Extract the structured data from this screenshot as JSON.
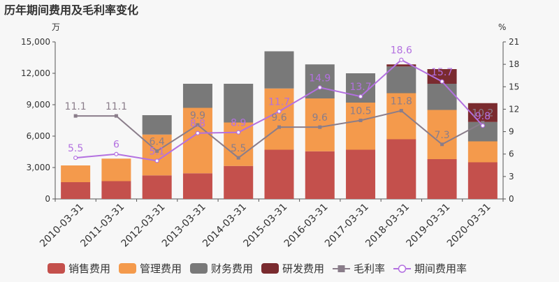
{
  "chart_data": {
    "type": "bar",
    "title": "历年期间费用及毛利率变化",
    "left_unit": "万",
    "right_unit": "%",
    "categories": [
      "2010-03-31",
      "2011-03-31",
      "2012-03-31",
      "2013-03-31",
      "2014-03-31",
      "2015-03-31",
      "2016-03-31",
      "2017-03-31",
      "2018-03-31",
      "2019-03-31",
      "2020-03-31"
    ],
    "y_left": {
      "min": 0,
      "max": 15000,
      "ticks": [
        "0",
        "3,000",
        "6,000",
        "9,000",
        "12,000",
        "15,000"
      ]
    },
    "y_right": {
      "min": 0,
      "max": 21,
      "ticks": [
        "0",
        "3",
        "6",
        "9",
        "12",
        "15",
        "18",
        "21"
      ]
    },
    "bar_series": [
      {
        "name": "销售费用",
        "color": "#c4504c",
        "values": [
          1600,
          1700,
          2250,
          2450,
          3150,
          4700,
          4550,
          4700,
          5700,
          3800,
          3500
        ]
      },
      {
        "name": "管理费用",
        "color": "#f49a4c",
        "values": [
          1600,
          2150,
          3900,
          6250,
          4150,
          5850,
          5050,
          4500,
          4400,
          4700,
          2000
        ]
      },
      {
        "name": "财务费用",
        "color": "#797979",
        "values": [
          0,
          0,
          1850,
          2300,
          3700,
          3550,
          3250,
          2800,
          2550,
          2500,
          1850
        ]
      },
      {
        "name": "研发费用",
        "color": "#7a2b2f",
        "values": [
          0,
          0,
          0,
          0,
          0,
          0,
          0,
          0,
          200,
          1400,
          1800
        ]
      }
    ],
    "line_series": [
      {
        "name": "毛利率",
        "color": "#8a7d8a",
        "marker": "square",
        "values": [
          11.1,
          11.1,
          6.4,
          9.9,
          5.5,
          9.6,
          9.6,
          10.5,
          11.8,
          7.3,
          10.2
        ]
      },
      {
        "name": "期间费用率",
        "color": "#b370e0",
        "marker": "circle",
        "values": [
          5.5,
          6,
          5.1,
          8.8,
          8.9,
          11.7,
          14.9,
          13.7,
          18.6,
          15.7,
          9.8
        ]
      }
    ],
    "legend": [
      "销售费用",
      "管理费用",
      "财务费用",
      "研发费用",
      "毛利率",
      "期间费用率"
    ],
    "legend_position": "bottom",
    "grid": false
  }
}
